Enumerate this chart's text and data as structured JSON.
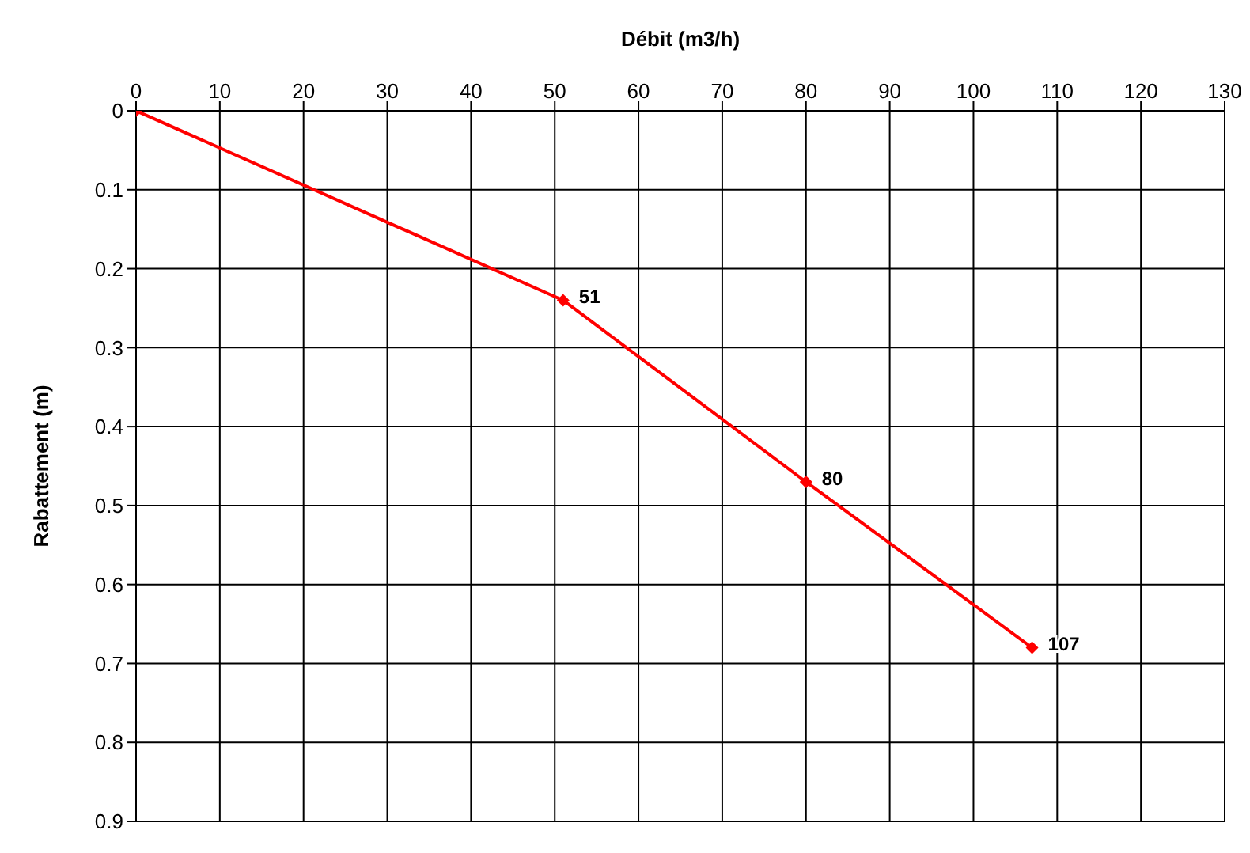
{
  "chart_data": {
    "type": "line",
    "xlabel": "Débit (m3/h)",
    "ylabel": "Rabattement (m)",
    "x": [
      0,
      51,
      80,
      107
    ],
    "series": [
      {
        "color": "#ff0000",
        "values": [
          0,
          0.24,
          0.47,
          0.68
        ]
      }
    ],
    "annotations": [
      {
        "text": "51",
        "x": 51,
        "y": 0.24
      },
      {
        "text": "80",
        "x": 80,
        "y": 0.47
      },
      {
        "text": "107",
        "x": 107,
        "y": 0.68
      }
    ],
    "xlim": [
      0,
      130
    ],
    "xticks": [
      0,
      10,
      20,
      30,
      40,
      50,
      60,
      70,
      80,
      90,
      100,
      110,
      120,
      130
    ],
    "ylim": [
      0.9,
      0
    ],
    "yticks": [
      0,
      0.1,
      0.2,
      0.3,
      0.4,
      0.5,
      0.6,
      0.7,
      0.8,
      0.9
    ],
    "grid": true,
    "marker": "diamond",
    "line_style": "solid"
  }
}
